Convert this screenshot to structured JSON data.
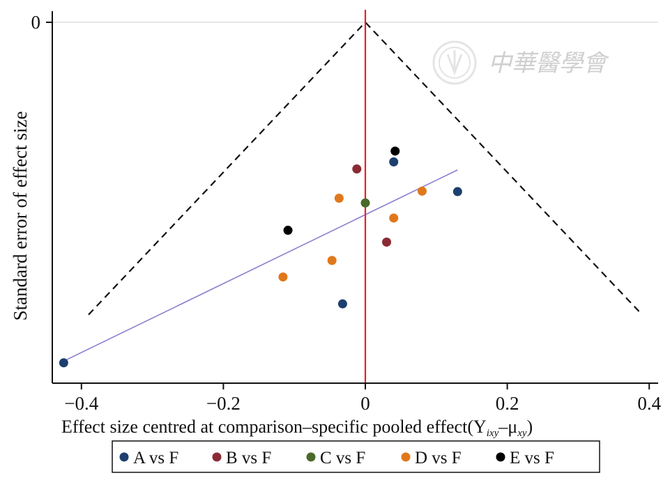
{
  "chart_data": {
    "type": "scatter",
    "title": "",
    "xlabel": "Effect size centred at comparison–specific pooled effect(Y",
    "xlabel_sub1": "ixy",
    "xlabel_mid": "–μ",
    "xlabel_sub2": "xy",
    "xlabel_end": ")",
    "ylabel": "Standard error of effect size",
    "xlim": [
      -0.44,
      0.41
    ],
    "ylim": [
      0.745,
      0
    ],
    "y_reversed": true,
    "x_ticks": [
      {
        "value": -0.4,
        "label": "−0.4"
      },
      {
        "value": -0.2,
        "label": "−0.2"
      },
      {
        "value": 0,
        "label": "0"
      },
      {
        "value": 0.2,
        "label": "0.2"
      },
      {
        "value": 0.4,
        "label": "0.4"
      }
    ],
    "y_ticks": [
      {
        "value": 0,
        "label": "0"
      }
    ],
    "reference_line": {
      "x": 0,
      "color": "#e8202a"
    },
    "funnel": {
      "apex": [
        0,
        0
      ],
      "left_end": [
        -0.39,
        0.62
      ],
      "right_end": [
        0.39,
        0.62
      ],
      "style": "dashed",
      "color": "#111111"
    },
    "fit_line": {
      "start": [
        -0.43,
        0.722
      ],
      "end": [
        0.13,
        0.313
      ],
      "color": "#8a7fd0"
    },
    "series": [
      {
        "name": "A vs F",
        "color": "#1d3f6e",
        "points": [
          [
            0.04,
            0.296
          ],
          [
            0.13,
            0.359
          ],
          [
            -0.032,
            0.597
          ],
          [
            -0.425,
            0.722
          ]
        ]
      },
      {
        "name": "B vs F",
        "color": "#8b2a34",
        "points": [
          [
            -0.012,
            0.311
          ],
          [
            0.03,
            0.466
          ]
        ]
      },
      {
        "name": "C vs F",
        "color": "#4a6a2a",
        "points": [
          [
            0,
            0.383
          ]
        ]
      },
      {
        "name": "D vs F",
        "color": "#e0781b",
        "points": [
          [
            0.08,
            0.358
          ],
          [
            -0.037,
            0.373
          ],
          [
            0.04,
            0.415
          ],
          [
            -0.047,
            0.505
          ],
          [
            -0.116,
            0.54
          ]
        ]
      },
      {
        "name": "E vs F",
        "color": "#000000",
        "points": [
          [
            0.042,
            0.273
          ],
          [
            -0.109,
            0.441
          ]
        ]
      }
    ],
    "legend_position": "bottom-center",
    "grid": false
  },
  "watermark": {
    "text": "中華醫學會",
    "logo": "seal-icon"
  }
}
